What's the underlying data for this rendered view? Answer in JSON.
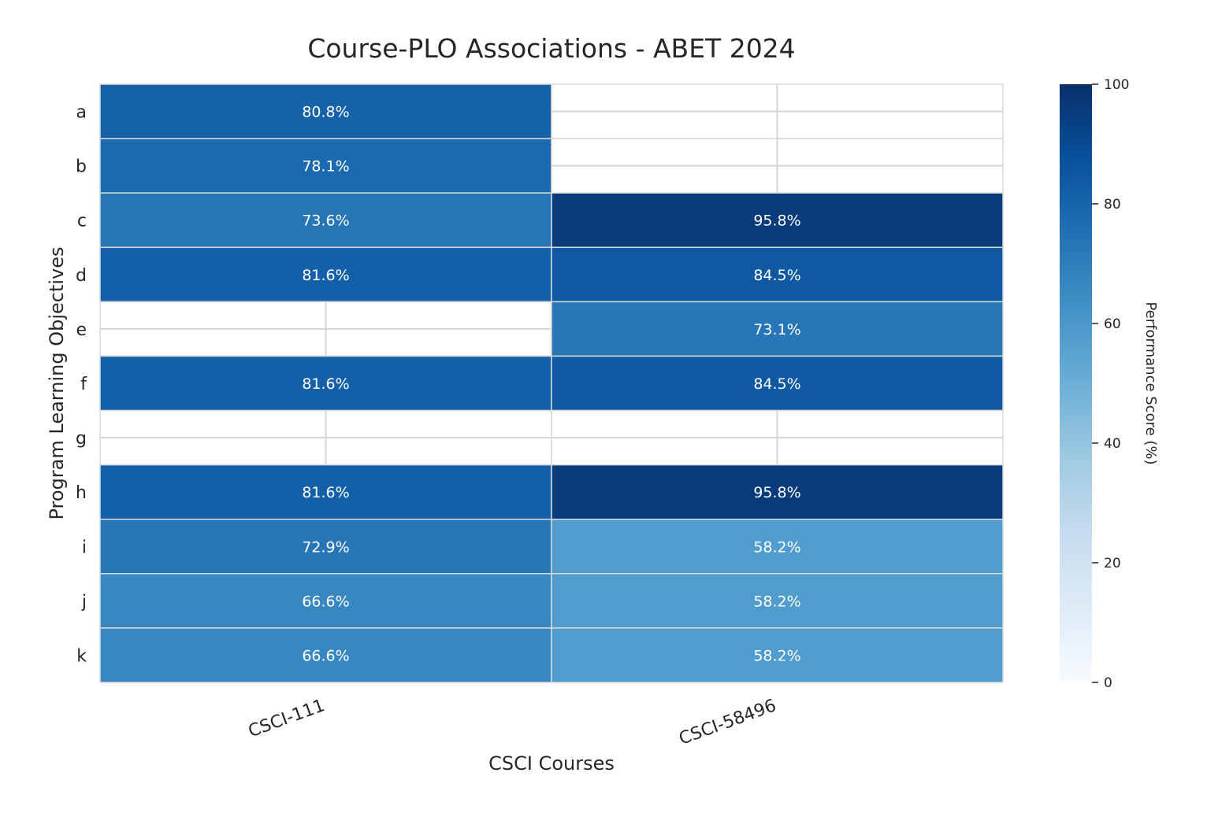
{
  "chart_data": {
    "type": "heatmap",
    "title": "Course-PLO Associations - ABET 2024",
    "xlabel": "CSCI Courses",
    "ylabel": "Program Learning Objectives",
    "columns": [
      "CSCI-111",
      "CSCI-58496"
    ],
    "rows": [
      "a",
      "b",
      "c",
      "d",
      "e",
      "f",
      "g",
      "h",
      "i",
      "j",
      "k"
    ],
    "values": [
      [
        80.8,
        null
      ],
      [
        78.1,
        null
      ],
      [
        73.6,
        95.8
      ],
      [
        81.6,
        84.5
      ],
      [
        null,
        73.1
      ],
      [
        81.6,
        84.5
      ],
      [
        null,
        null
      ],
      [
        81.6,
        95.8
      ],
      [
        72.9,
        58.2
      ],
      [
        66.6,
        58.2
      ],
      [
        66.6,
        58.2
      ]
    ],
    "value_labels": [
      [
        "80.8%",
        ""
      ],
      [
        "78.1%",
        ""
      ],
      [
        "73.6%",
        "95.8%"
      ],
      [
        "81.6%",
        "84.5%"
      ],
      [
        "",
        "73.1%"
      ],
      [
        "81.6%",
        "84.5%"
      ],
      [
        "",
        ""
      ],
      [
        "81.6%",
        "95.8%"
      ],
      [
        "72.9%",
        "58.2%"
      ],
      [
        "66.6%",
        "58.2%"
      ],
      [
        "66.6%",
        "58.2%"
      ]
    ],
    "colorbar": {
      "label": "Performance Score (%)",
      "range": [
        0,
        100
      ],
      "ticks": [
        "0",
        "20",
        "40",
        "60",
        "80",
        "100"
      ],
      "colormap": "Blues"
    }
  }
}
